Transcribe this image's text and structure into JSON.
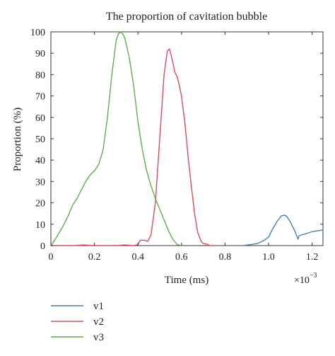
{
  "chart_data": {
    "type": "line",
    "title": "The proportion of cavitation bubble",
    "xlabel": "Time (ms)",
    "ylabel": "Proportion (%)",
    "x_multiplier": "×10",
    "x_multiplier_exp": "−3",
    "xlim": [
      0,
      1.25
    ],
    "ylim": [
      0,
      100
    ],
    "xticks": [
      "0",
      "0.2",
      "0.4",
      "0.6",
      "0.8",
      "1.0",
      "1.2"
    ],
    "yticks": [
      "0",
      "10",
      "20",
      "30",
      "40",
      "50",
      "60",
      "70",
      "80",
      "90",
      "100"
    ],
    "grid": false,
    "legend_position": "bottom-left",
    "series": [
      {
        "name": "v1",
        "color": "#4a7fae",
        "points": [
          [
            0.88,
            0
          ],
          [
            0.92,
            0.5
          ],
          [
            0.95,
            1
          ],
          [
            0.98,
            2.5
          ],
          [
            1.0,
            4
          ],
          [
            1.02,
            8
          ],
          [
            1.04,
            11.5
          ],
          [
            1.06,
            14
          ],
          [
            1.075,
            14.2
          ],
          [
            1.085,
            13.5
          ],
          [
            1.1,
            11
          ],
          [
            1.12,
            7
          ],
          [
            1.135,
            3
          ],
          [
            1.14,
            4.5
          ],
          [
            1.15,
            5
          ],
          [
            1.17,
            5.5
          ],
          [
            1.2,
            6.5
          ],
          [
            1.25,
            7.3
          ]
        ]
      },
      {
        "name": "v2",
        "color": "#d94b5e",
        "points": [
          [
            0,
            0
          ],
          [
            0.1,
            0
          ],
          [
            0.15,
            0.3
          ],
          [
            0.2,
            0
          ],
          [
            0.25,
            0
          ],
          [
            0.3,
            0
          ],
          [
            0.34,
            0.3
          ],
          [
            0.38,
            0
          ],
          [
            0.4,
            0.5
          ],
          [
            0.41,
            2.5
          ],
          [
            0.43,
            2.5
          ],
          [
            0.445,
            2
          ],
          [
            0.46,
            5
          ],
          [
            0.48,
            20
          ],
          [
            0.5,
            50
          ],
          [
            0.52,
            80
          ],
          [
            0.535,
            91
          ],
          [
            0.545,
            92
          ],
          [
            0.555,
            88
          ],
          [
            0.57,
            81
          ],
          [
            0.58,
            79
          ],
          [
            0.59,
            75
          ],
          [
            0.6,
            70
          ],
          [
            0.615,
            58
          ],
          [
            0.63,
            42
          ],
          [
            0.645,
            28
          ],
          [
            0.66,
            15
          ],
          [
            0.675,
            6
          ],
          [
            0.69,
            2
          ],
          [
            0.7,
            1
          ],
          [
            0.72,
            0.5
          ],
          [
            0.73,
            0
          ],
          [
            0.75,
            0
          ]
        ]
      },
      {
        "name": "v3",
        "color": "#5ab04a",
        "points": [
          [
            0,
            0
          ],
          [
            0.02,
            3
          ],
          [
            0.05,
            8
          ],
          [
            0.08,
            14
          ],
          [
            0.1,
            19
          ],
          [
            0.12,
            22
          ],
          [
            0.14,
            26
          ],
          [
            0.16,
            30
          ],
          [
            0.18,
            33
          ],
          [
            0.2,
            35
          ],
          [
            0.22,
            38
          ],
          [
            0.24,
            45
          ],
          [
            0.26,
            60
          ],
          [
            0.28,
            80
          ],
          [
            0.3,
            96
          ],
          [
            0.31,
            99
          ],
          [
            0.32,
            100
          ],
          [
            0.33,
            99
          ],
          [
            0.34,
            97
          ],
          [
            0.36,
            88
          ],
          [
            0.38,
            75
          ],
          [
            0.4,
            58
          ],
          [
            0.42,
            45
          ],
          [
            0.44,
            35
          ],
          [
            0.46,
            28
          ],
          [
            0.48,
            22
          ],
          [
            0.5,
            17
          ],
          [
            0.52,
            12
          ],
          [
            0.54,
            7
          ],
          [
            0.56,
            3
          ],
          [
            0.58,
            0.5
          ],
          [
            0.6,
            0
          ]
        ]
      }
    ]
  }
}
